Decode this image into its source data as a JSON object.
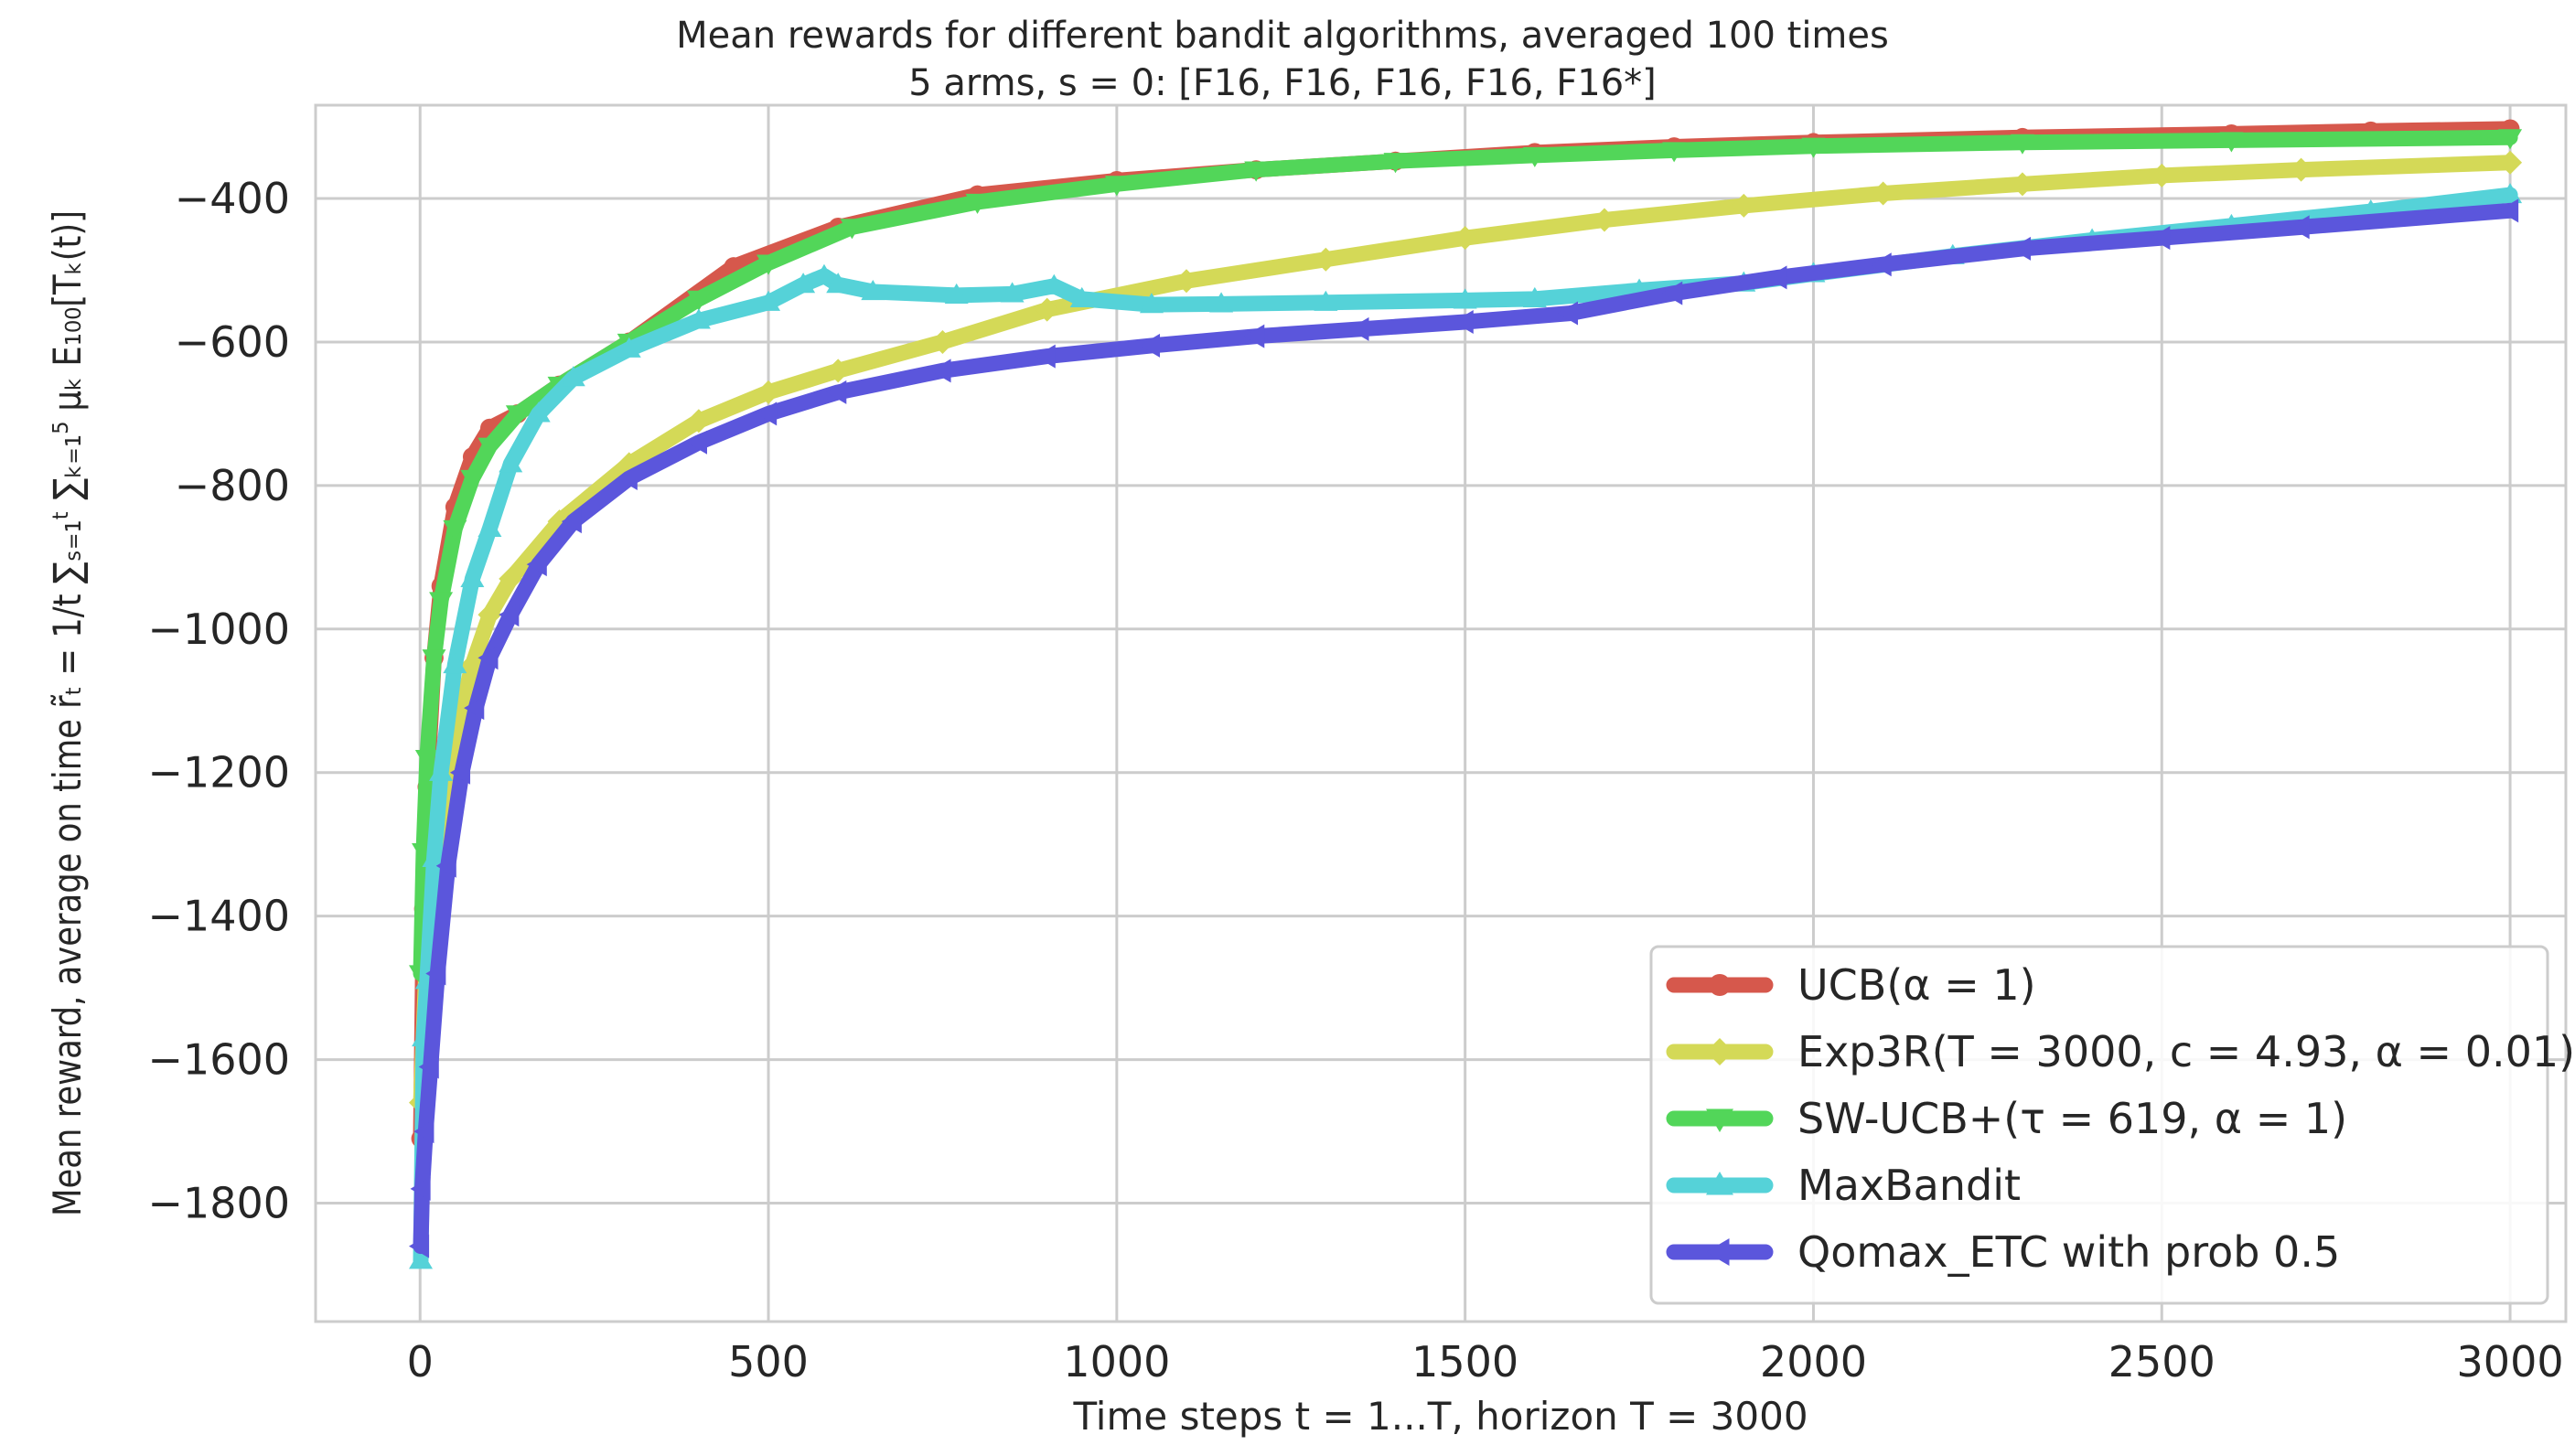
{
  "chart_data": {
    "type": "line",
    "title": "Mean rewards for different bandit algorithms, averaged 100 times",
    "subtitle": "5 arms, s = 0: [F16, F16, F16, F16, F16*]",
    "xlabel": "Time steps t = 1...T, horizon T = 3000",
    "ylabel": "Mean reward, average on time r̃ₜ = 1/t ∑ₛ₌₁ᵗ ∑ₖ₌₁⁵ μₖ E₁₀₀[Tₖ(t)]",
    "xlim": [
      -150,
      3080
    ],
    "ylim": [
      -1965,
      -270
    ],
    "xticks": [
      0,
      500,
      1000,
      1500,
      2000,
      2500,
      3000
    ],
    "xtick_labels": [
      "0",
      "500",
      "1000",
      "1500",
      "2000",
      "2500",
      "3000"
    ],
    "yticks": [
      -400,
      -600,
      -800,
      -1000,
      -1200,
      -1400,
      -1600,
      -1800
    ],
    "ytick_labels": [
      "−400",
      "−600",
      "−800",
      "−1000",
      "−1200",
      "−1400",
      "−1600",
      "−1800"
    ],
    "grid": true,
    "legend_position": "bottom-right",
    "series": [
      {
        "name": "UCB(α = 1)",
        "color": "#d6584c",
        "marker": "circle",
        "x": [
          1,
          5,
          10,
          20,
          30,
          50,
          75,
          100,
          140,
          200,
          300,
          450,
          600,
          800,
          1000,
          1200,
          1400,
          1600,
          1800,
          2000,
          2300,
          2600,
          2800,
          3000
        ],
        "y": [
          -1710,
          -1390,
          -1220,
          -1040,
          -940,
          -830,
          -760,
          -720,
          -700,
          -660,
          -600,
          -495,
          -440,
          -395,
          -375,
          -360,
          -348,
          -336,
          -328,
          -322,
          -315,
          -310,
          -306,
          -303
        ]
      },
      {
        "name": "Exp3R(T = 3000, c = 4.93, α = 0.01)",
        "color": "#d4d957",
        "marker": "diamond",
        "x": [
          1,
          10,
          20,
          30,
          50,
          75,
          100,
          130,
          200,
          300,
          400,
          500,
          600,
          750,
          900,
          1100,
          1300,
          1500,
          1700,
          1900,
          2100,
          2300,
          2500,
          2700,
          3000
        ],
        "y": [
          -1660,
          -1440,
          -1330,
          -1260,
          -1150,
          -1050,
          -980,
          -930,
          -850,
          -770,
          -710,
          -670,
          -640,
          -600,
          -555,
          -515,
          -485,
          -455,
          -430,
          -410,
          -393,
          -380,
          -368,
          -360,
          -350
        ]
      },
      {
        "name": "SW-UCB+(τ = 619, α = 1)",
        "color": "#52d659",
        "marker": "triangle-down",
        "x": [
          1,
          5,
          10,
          20,
          30,
          50,
          75,
          100,
          140,
          200,
          300,
          400,
          500,
          620,
          800,
          1000,
          1200,
          1400,
          1600,
          1800,
          2000,
          2300,
          2600,
          3000
        ],
        "y": [
          -1480,
          -1310,
          -1180,
          -1040,
          -960,
          -860,
          -790,
          -745,
          -700,
          -660,
          -600,
          -540,
          -490,
          -440,
          -405,
          -380,
          -360,
          -348,
          -340,
          -333,
          -327,
          -322,
          -319,
          -315
        ]
      },
      {
        "name": "MaxBandit",
        "color": "#55d2d8",
        "marker": "triangle-up",
        "x": [
          1,
          5,
          10,
          20,
          30,
          50,
          75,
          100,
          130,
          170,
          220,
          300,
          400,
          500,
          550,
          580,
          600,
          650,
          770,
          850,
          910,
          950,
          1050,
          1150,
          1300,
          1500,
          1600,
          1750,
          1900,
          2000,
          2200,
          2400,
          2600,
          2800,
          3000
        ],
        "y": [
          -1880,
          -1570,
          -1490,
          -1320,
          -1200,
          -1050,
          -930,
          -860,
          -770,
          -700,
          -650,
          -610,
          -570,
          -545,
          -520,
          -508,
          -520,
          -530,
          -535,
          -533,
          -522,
          -540,
          -548,
          -547,
          -545,
          -542,
          -540,
          -528,
          -518,
          -505,
          -480,
          -458,
          -438,
          -418,
          -395
        ]
      },
      {
        "name": "Qomax_ETC with prob 0.5",
        "color": "#5b56dc",
        "marker": "triangle-left",
        "x": [
          1,
          3,
          8,
          15,
          25,
          40,
          60,
          80,
          100,
          130,
          170,
          220,
          300,
          400,
          500,
          600,
          750,
          900,
          1050,
          1200,
          1350,
          1500,
          1650,
          1800,
          1950,
          2100,
          2300,
          2500,
          2700,
          3000
        ],
        "y": [
          -1860,
          -1780,
          -1700,
          -1610,
          -1480,
          -1330,
          -1200,
          -1110,
          -1040,
          -980,
          -910,
          -850,
          -790,
          -740,
          -700,
          -670,
          -640,
          -620,
          -605,
          -592,
          -582,
          -572,
          -560,
          -532,
          -510,
          -492,
          -470,
          -455,
          -440,
          -417
        ]
      }
    ]
  }
}
